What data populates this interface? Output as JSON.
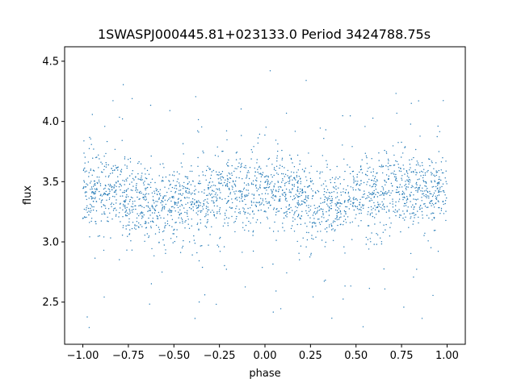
{
  "chart_data": {
    "type": "scatter",
    "title": "1SWASPJ000445.81+023133.0 Period 3424788.75s",
    "xlabel": "phase",
    "ylabel": "flux",
    "xlim": [
      -1.1,
      1.1
    ],
    "ylim": [
      2.15,
      4.62
    ],
    "xticks": [
      -1.0,
      -0.75,
      -0.5,
      -0.25,
      0.0,
      0.25,
      0.5,
      0.75,
      1.0
    ],
    "xtick_labels": [
      "−1.00",
      "−0.75",
      "−0.50",
      "−0.25",
      "0.00",
      "0.25",
      "0.50",
      "0.75",
      "1.00"
    ],
    "yticks": [
      2.5,
      3.0,
      3.5,
      4.0,
      4.5
    ],
    "ytick_labels": [
      "2.5",
      "3.0",
      "3.5",
      "4.0",
      "4.5"
    ],
    "grid": false,
    "color": "#1f77b4",
    "series": [
      {
        "name": "",
        "phase_range": [
          -1.0,
          1.0
        ],
        "mean_flux": [
          [
            -1.0,
            3.42
          ],
          [
            -0.9,
            3.43
          ],
          [
            -0.8,
            3.4
          ],
          [
            -0.7,
            3.36
          ],
          [
            -0.62,
            3.32
          ],
          [
            -0.55,
            3.3
          ],
          [
            -0.45,
            3.32
          ],
          [
            -0.35,
            3.36
          ],
          [
            -0.25,
            3.4
          ],
          [
            -0.15,
            3.42
          ],
          [
            -0.05,
            3.43
          ],
          [
            0.0,
            3.42
          ],
          [
            0.1,
            3.4
          ],
          [
            0.2,
            3.36
          ],
          [
            0.3,
            3.33
          ],
          [
            0.38,
            3.3
          ],
          [
            0.45,
            3.32
          ],
          [
            0.55,
            3.36
          ],
          [
            0.65,
            3.4
          ],
          [
            0.75,
            3.42
          ],
          [
            0.85,
            3.43
          ],
          [
            1.0,
            3.42
          ]
        ],
        "typical_scatter": 0.15,
        "flux_extent": [
          2.27,
          4.48
        ]
      }
    ]
  }
}
